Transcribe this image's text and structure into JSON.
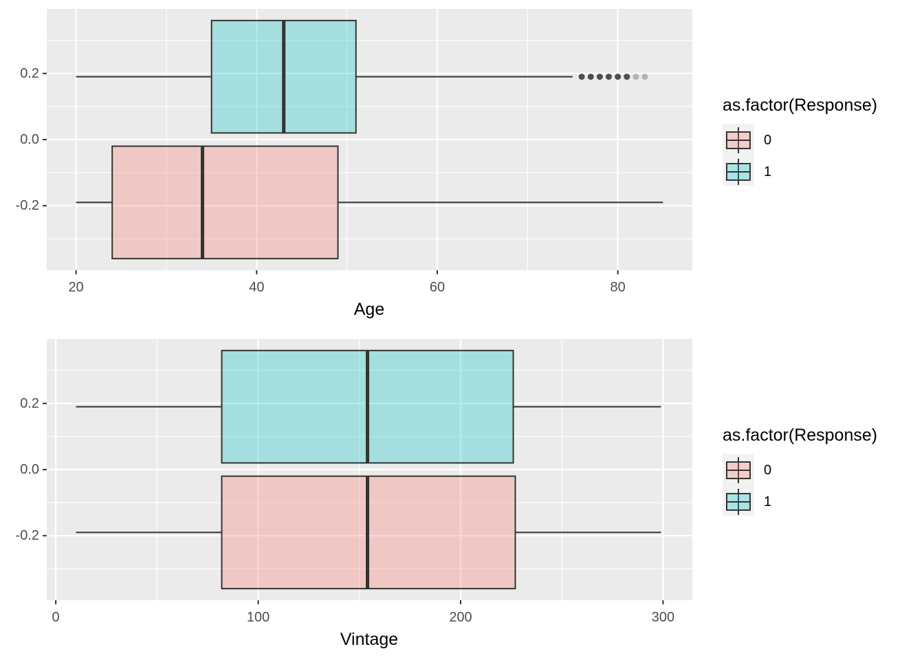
{
  "colors": {
    "panel_bg": "#EBEBEB",
    "grid": "#FFFFFF",
    "tick_text": "#4D4D4D",
    "box_outline": "#333333",
    "fill_0": "#F8766D",
    "fill_1": "#00BFC4",
    "box_alpha": 0.3
  },
  "chart_data": [
    {
      "type": "boxplot",
      "orientation": "horizontal",
      "xlabel": "Age",
      "ylabel": "",
      "xlim": [
        16.75,
        88.25
      ],
      "ylim": [
        -0.395,
        0.395
      ],
      "x_ticks": [
        20,
        40,
        60,
        80
      ],
      "x_tick_labels": [
        "20",
        "40",
        "60",
        "80"
      ],
      "y_ticks": [
        -0.2,
        0.0,
        0.2
      ],
      "y_tick_labels": [
        "-0.2",
        "0.0",
        "0.2"
      ],
      "legend": {
        "title": "as.factor(Response)",
        "labels": [
          "0",
          "1"
        ],
        "position": "right"
      },
      "boxes": [
        {
          "group": "0",
          "min": 20,
          "q1": 24,
          "median": 34,
          "q3": 49,
          "max": 85,
          "y_center": -0.19,
          "height": 0.34,
          "outliers": []
        },
        {
          "group": "1",
          "min": 20,
          "q1": 35,
          "median": 43,
          "q3": 51,
          "max": 75,
          "y_center": 0.19,
          "height": 0.34,
          "outliers": [
            76,
            77,
            78,
            79,
            80,
            81,
            82,
            83
          ]
        }
      ]
    },
    {
      "type": "boxplot",
      "orientation": "horizontal",
      "xlabel": "Vintage",
      "ylabel": "",
      "xlim": [
        -4.45,
        314.45
      ],
      "ylim": [
        -0.395,
        0.395
      ],
      "x_ticks": [
        0,
        100,
        200,
        300
      ],
      "x_tick_labels": [
        "0",
        "100",
        "200",
        "300"
      ],
      "y_ticks": [
        -0.2,
        0.0,
        0.2
      ],
      "y_tick_labels": [
        "-0.2",
        "0.0",
        "0.2"
      ],
      "legend": {
        "title": "as.factor(Response)",
        "labels": [
          "0",
          "1"
        ],
        "position": "right"
      },
      "boxes": [
        {
          "group": "0",
          "min": 10,
          "q1": 82,
          "median": 154,
          "q3": 227,
          "max": 299,
          "y_center": -0.19,
          "height": 0.34,
          "outliers": []
        },
        {
          "group": "1",
          "min": 10,
          "q1": 82,
          "median": 154,
          "q3": 226,
          "max": 299,
          "y_center": 0.19,
          "height": 0.34,
          "outliers": []
        }
      ]
    }
  ]
}
